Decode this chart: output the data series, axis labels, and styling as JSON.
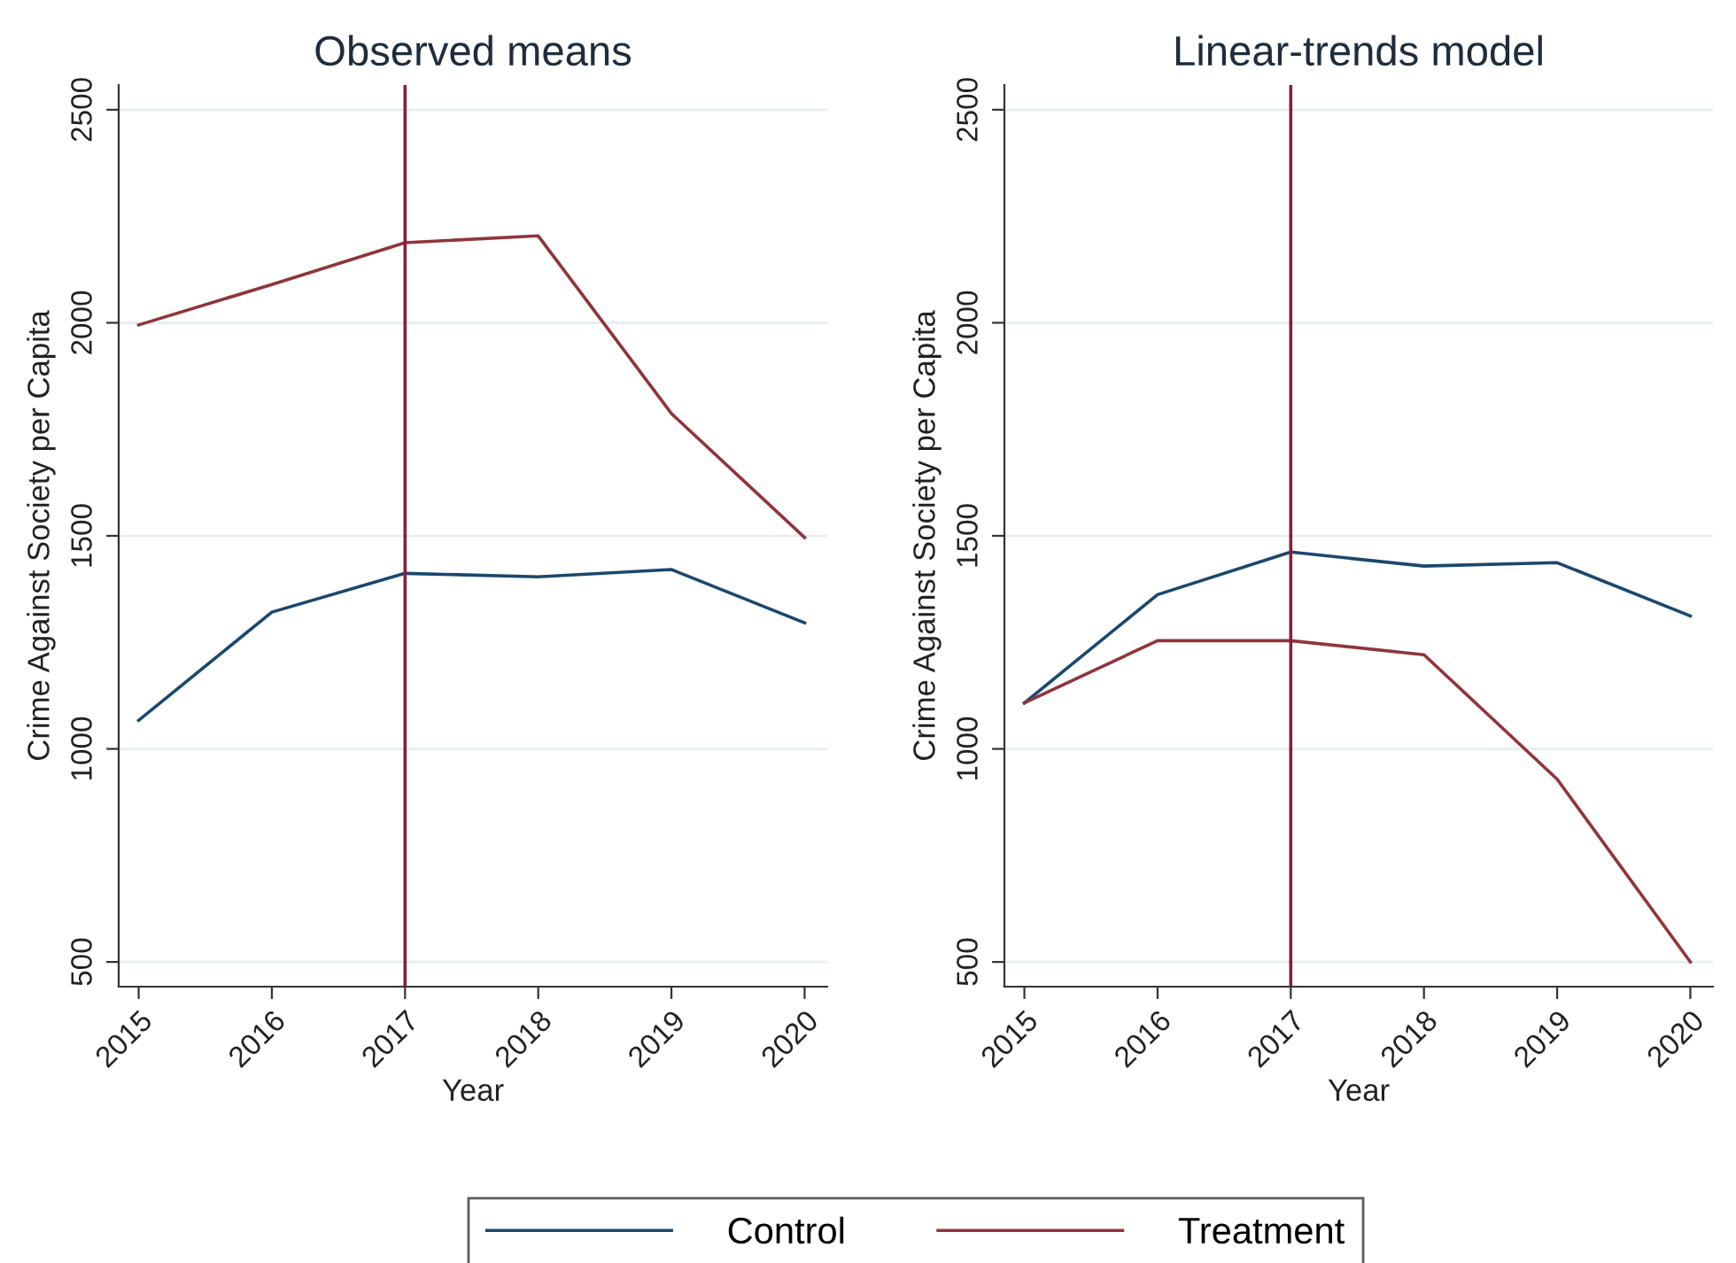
{
  "chart_data": [
    {
      "type": "line",
      "title": "Observed means",
      "xlabel": "Year",
      "ylabel": "Crime Against Society per Capita",
      "x": [
        2015,
        2016,
        2017,
        2018,
        2019,
        2020
      ],
      "xlim": [
        2014.85,
        2020.17
      ],
      "xticks": [
        2015,
        2016,
        2017,
        2018,
        2019,
        2020
      ],
      "ylim": [
        442,
        2558
      ],
      "yticks": [
        500,
        1000,
        1500,
        2000,
        2500
      ],
      "grid": "y",
      "legend": "bottom",
      "line_style": "solid",
      "ref_lines": [
        {
          "axis": "x",
          "value": 2017,
          "color": "#8b1c3e"
        }
      ],
      "series": [
        {
          "name": "Control",
          "color": "#1a476f",
          "values": [
            1067,
            1321,
            1412,
            1404,
            1421,
            1296
          ]
        },
        {
          "name": "Treatment",
          "color": "#90353b",
          "values": [
            1995,
            2090,
            2188,
            2204,
            1787,
            1496
          ]
        }
      ]
    },
    {
      "type": "line",
      "title": "Linear-trends model",
      "xlabel": "Year",
      "ylabel": "Crime Against Society per Capita",
      "x": [
        2015,
        2016,
        2017,
        2018,
        2019,
        2020
      ],
      "xlim": [
        2014.85,
        2020.17
      ],
      "xticks": [
        2015,
        2016,
        2017,
        2018,
        2019,
        2020
      ],
      "ylim": [
        442,
        2558
      ],
      "yticks": [
        500,
        1000,
        1500,
        2000,
        2500
      ],
      "grid": "y",
      "legend": "bottom",
      "line_style": "solid",
      "ref_lines": [
        {
          "axis": "x",
          "value": 2017,
          "color": "#8b1c3e"
        }
      ],
      "series": [
        {
          "name": "Control",
          "color": "#1a476f",
          "values": [
            1108,
            1362,
            1462,
            1429,
            1437,
            1312
          ]
        },
        {
          "name": "Treatment",
          "color": "#90353b",
          "values": [
            1108,
            1254,
            1254,
            1221,
            929,
            500
          ]
        }
      ]
    }
  ]
}
